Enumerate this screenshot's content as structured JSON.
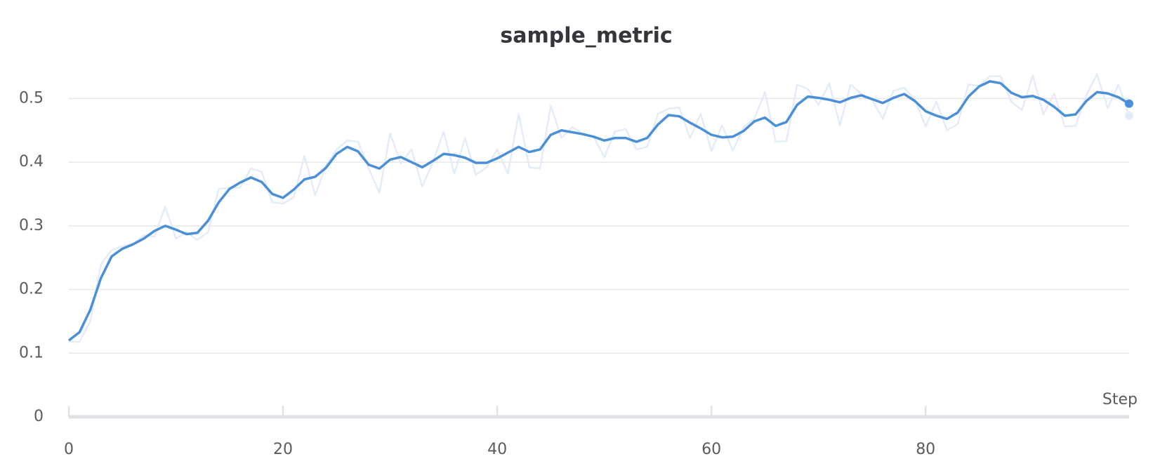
{
  "chart_data": {
    "type": "line",
    "title": "sample_metric",
    "x_label": "Step",
    "x": [
      0,
      1,
      2,
      3,
      4,
      5,
      6,
      7,
      8,
      9,
      10,
      11,
      12,
      13,
      14,
      15,
      16,
      17,
      18,
      19,
      20,
      21,
      22,
      23,
      24,
      25,
      26,
      27,
      28,
      29,
      30,
      31,
      32,
      33,
      34,
      35,
      36,
      37,
      38,
      39,
      40,
      41,
      42,
      43,
      44,
      45,
      46,
      47,
      48,
      49,
      50,
      51,
      52,
      53,
      54,
      55,
      56,
      57,
      58,
      59,
      60,
      61,
      62,
      63,
      64,
      65,
      66,
      67,
      68,
      69,
      70,
      71,
      72,
      73,
      74,
      75,
      76,
      77,
      78,
      79,
      80,
      81,
      82,
      83,
      84,
      85,
      86,
      87,
      88,
      89,
      90,
      91,
      92,
      93,
      94,
      95,
      96,
      97,
      98,
      99
    ],
    "series": [
      {
        "color": "#e3ecf8",
        "values": [
          0.118,
          0.118,
          0.15,
          0.24,
          0.262,
          0.268,
          0.272,
          0.285,
          0.283,
          0.33,
          0.28,
          0.29,
          0.278,
          0.29,
          0.358,
          0.36,
          0.36,
          0.39,
          0.385,
          0.337,
          0.335,
          0.345,
          0.41,
          0.348,
          0.394,
          0.42,
          0.434,
          0.432,
          0.39,
          0.352,
          0.445,
          0.398,
          0.42,
          0.362,
          0.4,
          0.448,
          0.382,
          0.438,
          0.38,
          0.392,
          0.42,
          0.382,
          0.476,
          0.392,
          0.39,
          0.489,
          0.438,
          0.455,
          0.445,
          0.44,
          0.408,
          0.448,
          0.452,
          0.42,
          0.424,
          0.476,
          0.484,
          0.486,
          0.438,
          0.476,
          0.418,
          0.458,
          0.418,
          0.455,
          0.468,
          0.51,
          0.432,
          0.433,
          0.522,
          0.515,
          0.49,
          0.524,
          0.458,
          0.522,
          0.507,
          0.498,
          0.468,
          0.512,
          0.517,
          0.498,
          0.456,
          0.495,
          0.45,
          0.46,
          0.522,
          0.52,
          0.535,
          0.535,
          0.495,
          0.482,
          0.536,
          0.475,
          0.508,
          0.456,
          0.457,
          0.505,
          0.538,
          0.485,
          0.522,
          0.473
        ]
      },
      {
        "color": "#4a8fd8",
        "values": [
          0.12,
          0.133,
          0.168,
          0.218,
          0.252,
          0.264,
          0.271,
          0.28,
          0.292,
          0.3,
          0.294,
          0.287,
          0.289,
          0.308,
          0.337,
          0.358,
          0.368,
          0.376,
          0.369,
          0.35,
          0.344,
          0.357,
          0.373,
          0.377,
          0.391,
          0.413,
          0.424,
          0.417,
          0.396,
          0.39,
          0.404,
          0.408,
          0.4,
          0.392,
          0.402,
          0.413,
          0.411,
          0.407,
          0.399,
          0.399,
          0.406,
          0.415,
          0.424,
          0.416,
          0.42,
          0.443,
          0.45,
          0.447,
          0.444,
          0.44,
          0.434,
          0.438,
          0.438,
          0.432,
          0.438,
          0.459,
          0.474,
          0.472,
          0.462,
          0.453,
          0.443,
          0.439,
          0.44,
          0.449,
          0.464,
          0.47,
          0.457,
          0.463,
          0.49,
          0.503,
          0.501,
          0.498,
          0.494,
          0.501,
          0.505,
          0.499,
          0.493,
          0.501,
          0.507,
          0.496,
          0.48,
          0.473,
          0.468,
          0.478,
          0.503,
          0.519,
          0.527,
          0.524,
          0.509,
          0.502,
          0.504,
          0.498,
          0.487,
          0.473,
          0.475,
          0.496,
          0.51,
          0.508,
          0.502,
          0.492
        ]
      }
    ],
    "xlim": [
      0,
      99
    ],
    "ylim": [
      0,
      0.55
    ],
    "xticks": [
      0,
      20,
      40,
      60,
      80
    ],
    "yticks": [
      0,
      0.1,
      0.2,
      0.3,
      0.4,
      0.5
    ],
    "grid": true
  }
}
